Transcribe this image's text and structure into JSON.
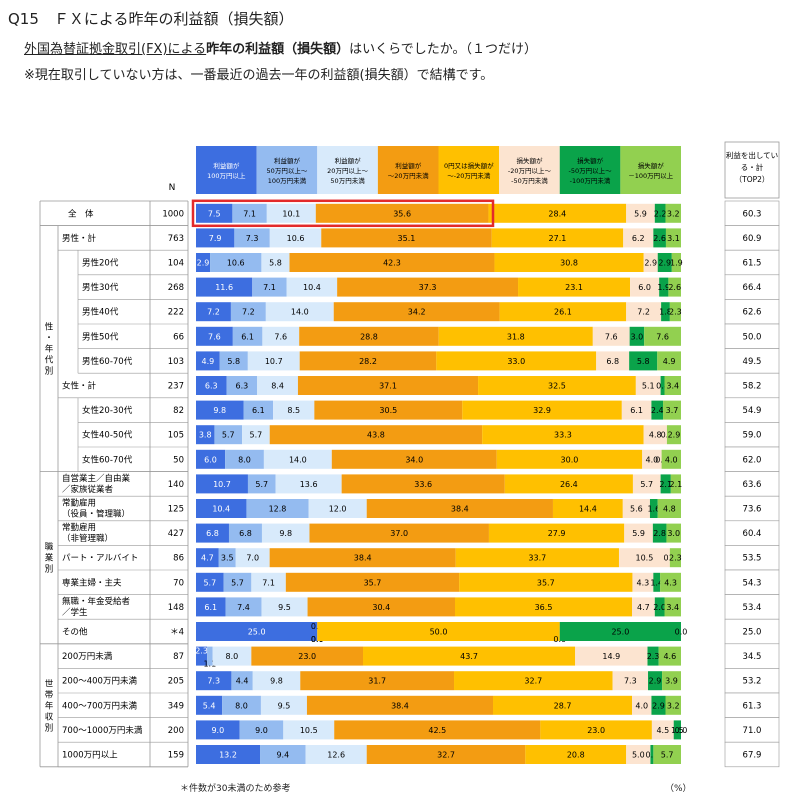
{
  "header": {
    "title": "Q15　ＦＸによる昨年の利益額（損失額）",
    "question_underlined": "外国為替証拠金取引(FX)による",
    "question_bold": "昨年の利益額（損失額）",
    "question_rest": "はいくらでしたか。（１つだけ）",
    "note": "※現在取引していない方は、一番最近の過去一年の利益額(損失額）で結構です。"
  },
  "footnote": "＊件数が30未満のため参考",
  "unit": "（%）",
  "chart_data": {
    "type": "bar",
    "stacked": "100%",
    "n_header": "N",
    "categories": [
      [
        "利益額が",
        "100万円以上"
      ],
      [
        "利益額が",
        "50万円以上～",
        "100万円未満"
      ],
      [
        "利益額が",
        "20万円以上～",
        "50万円未満"
      ],
      [
        "利益額が",
        "～20万円未満"
      ],
      [
        "0円又は損失額が",
        "～-20万円未満"
      ],
      [
        "損失額が",
        "-20万円以上～",
        "-50万円未満"
      ],
      [
        "損失額が",
        "-50万円以上～",
        "-100万円未満"
      ],
      [
        "損失額が",
        "－100万円以上"
      ]
    ],
    "category_colors": [
      "#3d6ee0",
      "#94bbf0",
      "#d8eafb",
      "#f39c12",
      "#ffc000",
      "#fce4d0",
      "#0aa34a",
      "#92d050"
    ],
    "header_text_colors": [
      "#ffffff",
      "#000000",
      "#000000",
      "#000000",
      "#000000",
      "#000000",
      "#000000",
      "#000000"
    ],
    "label_colors": [
      "#ffffff",
      "#000000",
      "#000000",
      "#000000",
      "#000000",
      "#000000",
      "#000000",
      "#000000"
    ],
    "top2_header": [
      "利益を出してい",
      "る・計",
      "（TOP2）"
    ],
    "groups": [
      {
        "label": "",
        "rows": [
          0
        ]
      },
      {
        "label": "性・年代別",
        "rows": [
          1,
          2,
          3,
          4,
          5,
          6,
          7,
          8,
          9,
          10
        ]
      },
      {
        "label": "職業別",
        "rows": [
          11,
          12,
          13,
          14,
          15,
          16,
          17
        ]
      },
      {
        "label": "世帯年収別",
        "rows": [
          18,
          19,
          20,
          21,
          22
        ]
      }
    ],
    "rows": [
      {
        "label": [
          "全　体"
        ],
        "n": "1000",
        "values": [
          7.5,
          7.1,
          10.1,
          35.6,
          28.4,
          5.9,
          2.2,
          3.2
        ],
        "top2": 60.3,
        "level": 0,
        "highlight": true
      },
      {
        "label": [
          "男性・計"
        ],
        "n": "763",
        "values": [
          7.9,
          7.3,
          10.6,
          35.1,
          27.1,
          6.2,
          2.6,
          3.1
        ],
        "top2": 60.9,
        "level": 0
      },
      {
        "label": [
          "男性20代"
        ],
        "n": "104",
        "values": [
          2.9,
          10.6,
          5.8,
          42.3,
          30.8,
          2.9,
          2.9,
          1.9
        ],
        "top2": 61.5,
        "level": 1
      },
      {
        "label": [
          "男性30代"
        ],
        "n": "268",
        "values": [
          11.6,
          7.1,
          10.4,
          37.3,
          23.1,
          6.0,
          1.9,
          2.6
        ],
        "top2": 66.4,
        "level": 1
      },
      {
        "label": [
          "男性40代"
        ],
        "n": "222",
        "values": [
          7.2,
          7.2,
          14.0,
          34.2,
          26.1,
          7.2,
          1.8,
          2.3
        ],
        "top2": 62.6,
        "level": 1
      },
      {
        "label": [
          "男性50代"
        ],
        "n": "66",
        "values": [
          7.6,
          6.1,
          7.6,
          28.8,
          31.8,
          7.6,
          3.0,
          7.6
        ],
        "top2": 50.0,
        "level": 1
      },
      {
        "label": [
          "男性60-70代"
        ],
        "n": "103",
        "values": [
          4.9,
          5.8,
          10.7,
          28.2,
          33.0,
          6.8,
          5.8,
          4.9
        ],
        "top2": 49.5,
        "level": 1
      },
      {
        "label": [
          "女性・計"
        ],
        "n": "237",
        "values": [
          6.3,
          6.3,
          8.4,
          37.1,
          32.5,
          5.1,
          0.8,
          3.4
        ],
        "top2": 58.2,
        "level": 0
      },
      {
        "label": [
          "女性20-30代"
        ],
        "n": "82",
        "values": [
          9.8,
          6.1,
          8.5,
          30.5,
          32.9,
          6.1,
          2.4,
          3.7
        ],
        "top2": 54.9,
        "level": 1
      },
      {
        "label": [
          "女性40-50代"
        ],
        "n": "105",
        "values": [
          3.8,
          5.7,
          5.7,
          43.8,
          33.3,
          4.8,
          0.0,
          2.9
        ],
        "top2": 59.0,
        "level": 1
      },
      {
        "label": [
          "女性60-70代"
        ],
        "n": "50",
        "values": [
          6.0,
          8.0,
          14.0,
          34.0,
          30.0,
          4.0,
          0.0,
          4.0
        ],
        "top2": 62.0,
        "level": 1
      },
      {
        "label": [
          "自営業主／自由業",
          "／家族従業者"
        ],
        "n": "140",
        "values": [
          10.7,
          5.7,
          13.6,
          33.6,
          26.4,
          5.7,
          2.1,
          2.1
        ],
        "top2": 63.6,
        "level": 0
      },
      {
        "label": [
          "常勤雇用",
          "（役員・管理職）"
        ],
        "n": "125",
        "values": [
          10.4,
          12.8,
          12.0,
          38.4,
          14.4,
          5.6,
          1.6,
          4.8
        ],
        "top2": 73.6,
        "level": 0
      },
      {
        "label": [
          "常勤雇用",
          "（非管理職）"
        ],
        "n": "427",
        "values": [
          6.8,
          6.8,
          9.8,
          37.0,
          27.9,
          5.9,
          2.8,
          3.0
        ],
        "top2": 60.4,
        "level": 0
      },
      {
        "label": [
          "パート・アルバイト"
        ],
        "n": "86",
        "values": [
          4.7,
          3.5,
          7.0,
          38.4,
          33.7,
          10.5,
          0.0,
          2.3
        ],
        "top2": 53.5,
        "level": 0
      },
      {
        "label": [
          "専業主婦・主夫"
        ],
        "n": "70",
        "values": [
          5.7,
          5.7,
          7.1,
          35.7,
          35.7,
          4.3,
          1.4,
          4.3
        ],
        "top2": 54.3,
        "level": 0
      },
      {
        "label": [
          "無職・年金受給者",
          "／学生"
        ],
        "n": "148",
        "values": [
          6.1,
          7.4,
          9.5,
          30.4,
          36.5,
          4.7,
          2.0,
          3.4
        ],
        "top2": 53.4,
        "level": 0
      },
      {
        "label": [
          "その他"
        ],
        "n": "＊4",
        "values": [
          25.0,
          0.0,
          0.0,
          0.0,
          50.0,
          0.0,
          25.0,
          0.0
        ],
        "top2": 25.0,
        "level": 0
      },
      {
        "label": [
          "200万円未満"
        ],
        "n": "87",
        "values": [
          2.3,
          1.1,
          8.0,
          23.0,
          43.7,
          14.9,
          2.3,
          4.6
        ],
        "top2": 34.5,
        "level": 0
      },
      {
        "label": [
          "200～400万円未満"
        ],
        "n": "205",
        "values": [
          7.3,
          4.4,
          9.8,
          31.7,
          32.7,
          7.3,
          2.9,
          3.9
        ],
        "top2": 53.2,
        "level": 0
      },
      {
        "label": [
          "400～700万円未満"
        ],
        "n": "349",
        "values": [
          5.4,
          8.0,
          9.5,
          38.4,
          28.7,
          4.0,
          2.9,
          3.2
        ],
        "top2": 61.3,
        "level": 0
      },
      {
        "label": [
          "700～1000万円未満"
        ],
        "n": "200",
        "values": [
          9.0,
          9.0,
          10.5,
          42.5,
          23.0,
          4.5,
          1.5,
          0.0
        ],
        "top2": 71.0,
        "level": 0
      },
      {
        "label": [
          "1000万円以上"
        ],
        "n": "159",
        "values": [
          13.2,
          9.4,
          12.6,
          32.7,
          20.8,
          5.0,
          0.6,
          5.7
        ],
        "top2": 67.9,
        "level": 0
      }
    ]
  }
}
